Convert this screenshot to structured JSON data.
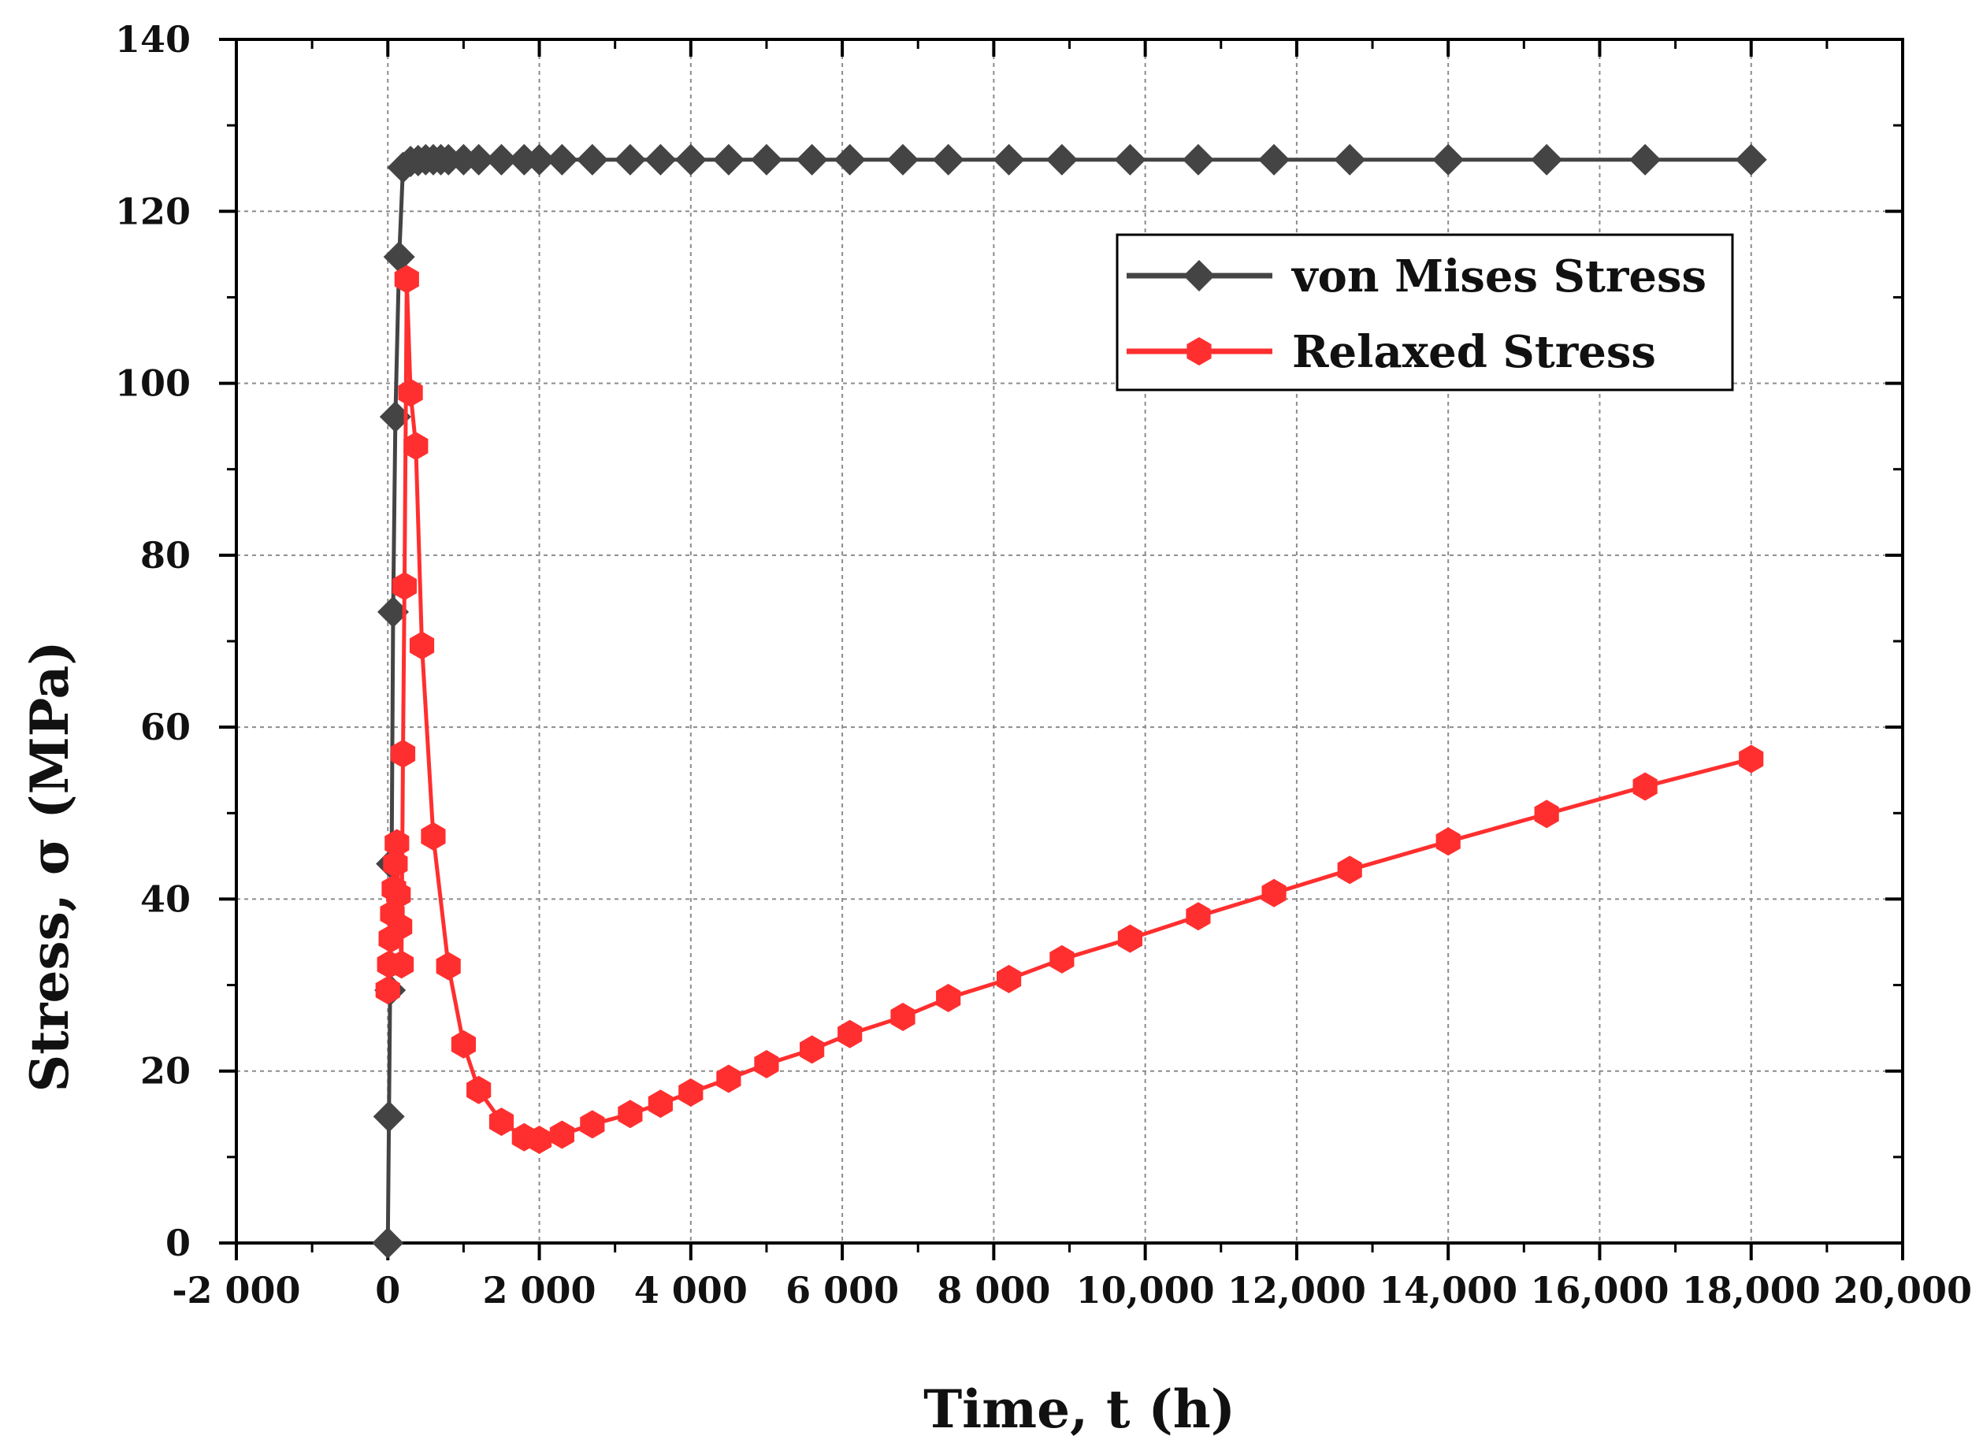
{
  "chart_data": {
    "type": "line",
    "title": "",
    "xlabel": "Time, t (h)",
    "ylabel": "Stress, σ (MPa)",
    "xlim": [
      -2000,
      20000
    ],
    "ylim": [
      0,
      140
    ],
    "grid": true,
    "legend_position": "top-right",
    "x_ticks": [
      -2000,
      0,
      2000,
      4000,
      6000,
      8000,
      10000,
      12000,
      14000,
      16000,
      18000,
      20000
    ],
    "x_tick_labels": [
      "-2 000",
      "0",
      "2 000",
      "4 000",
      "6 000",
      "8 000",
      "10,000",
      "12,000",
      "14,000",
      "16,000",
      "18,000",
      "20,000"
    ],
    "y_ticks": [
      0,
      20,
      40,
      60,
      80,
      100,
      120,
      140
    ],
    "y_tick_labels": [
      "0",
      "20",
      "40",
      "60",
      "80",
      "100",
      "120",
      "140"
    ],
    "series": [
      {
        "name": "von Mises Stress",
        "color": "#444444",
        "marker": "diamond",
        "x": [
          0,
          15,
          30,
          50,
          70,
          100,
          150,
          200,
          300,
          400,
          500,
          600,
          700,
          800,
          1000,
          1200,
          1500,
          1800,
          2000,
          2300,
          2700,
          3200,
          3600,
          4000,
          4500,
          5000,
          5600,
          6100,
          6800,
          7400,
          8200,
          8900,
          9800,
          10700,
          11700,
          12700,
          14000,
          15300,
          16600,
          18000
        ],
        "y": [
          0,
          14.7,
          29.4,
          44.1,
          73.4,
          96.1,
          114.7,
          125.1,
          125.8,
          125.9,
          126,
          126,
          126,
          126,
          126,
          126,
          126,
          126,
          126,
          126,
          126,
          126,
          126,
          126,
          126,
          126,
          126,
          126,
          126,
          126,
          126,
          126,
          126,
          126,
          126,
          126,
          126,
          126,
          126,
          126
        ]
      },
      {
        "name": "Relaxed Stress",
        "color": "#ff2f2f",
        "marker": "hexagon",
        "x": [
          0,
          20,
          40,
          60,
          80,
          100,
          120,
          140,
          160,
          180,
          200,
          220,
          250,
          300,
          370,
          450,
          600,
          800,
          1000,
          1200,
          1500,
          1800,
          2000,
          2300,
          2700,
          3200,
          3600,
          4000,
          4500,
          5000,
          5600,
          6100,
          6800,
          7400,
          8200,
          8900,
          9800,
          10700,
          11700,
          12700,
          14000,
          15300,
          16600,
          18000
        ],
        "y": [
          29.4,
          32.4,
          35.4,
          38.3,
          41.2,
          44.1,
          46.5,
          40.5,
          36.8,
          32.4,
          56.9,
          76.4,
          112.1,
          98.9,
          92.7,
          69.5,
          47.3,
          32.2,
          23.1,
          17.8,
          14.1,
          12.3,
          12.0,
          12.6,
          13.8,
          15.0,
          16.2,
          17.5,
          19.1,
          20.8,
          22.5,
          24.3,
          26.3,
          28.5,
          30.7,
          33.0,
          35.4,
          38.0,
          40.7,
          43.4,
          46.7,
          49.9,
          53.1,
          56.3
        ]
      }
    ]
  }
}
